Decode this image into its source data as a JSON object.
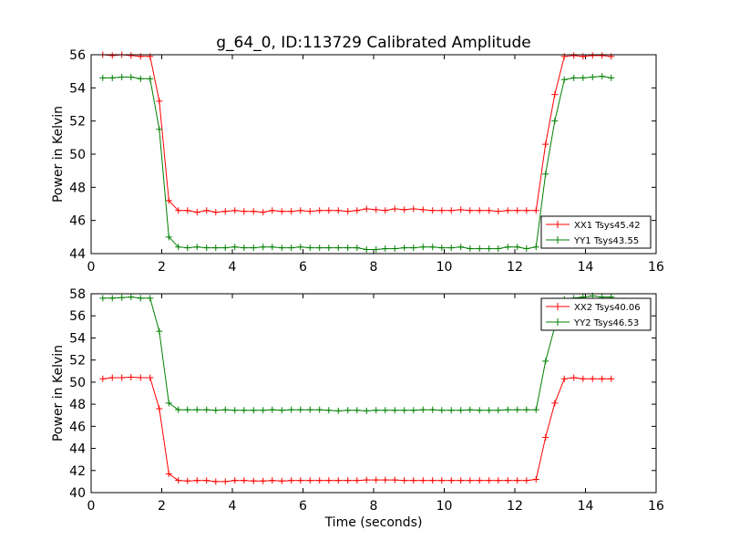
{
  "chart_data": [
    {
      "type": "line",
      "title": "g_64_0, ID:113729 Calibrated Amplitude",
      "xlabel": "",
      "ylabel": "Power in Kelvin",
      "xlim": [
        0,
        16
      ],
      "ylim": [
        44,
        56
      ],
      "xticks": [
        "0",
        "2",
        "4",
        "6",
        "8",
        "10",
        "12",
        "14",
        "16"
      ],
      "yticks": [
        "44",
        "46",
        "48",
        "50",
        "52",
        "54",
        "56"
      ],
      "legend_position": "lower-right",
      "grid": false,
      "x": [
        0.33,
        0.6,
        0.87,
        1.13,
        1.4,
        1.67,
        1.93,
        2.2,
        2.47,
        2.73,
        3.0,
        3.27,
        3.53,
        3.8,
        4.07,
        4.33,
        4.6,
        4.87,
        5.13,
        5.4,
        5.67,
        5.93,
        6.2,
        6.47,
        6.73,
        7.0,
        7.27,
        7.53,
        7.8,
        8.07,
        8.33,
        8.6,
        8.87,
        9.13,
        9.4,
        9.67,
        9.93,
        10.2,
        10.47,
        10.73,
        11.0,
        11.27,
        11.53,
        11.8,
        12.07,
        12.33,
        12.6,
        12.87,
        13.13,
        13.4,
        13.67,
        13.93,
        14.2,
        14.47,
        14.73
      ],
      "series": [
        {
          "name": "XX1 Tsys45.42",
          "color": "#ff0000",
          "values": [
            56.0,
            55.95,
            56.0,
            55.95,
            55.9,
            55.9,
            53.2,
            47.2,
            46.6,
            46.6,
            46.5,
            46.6,
            46.5,
            46.55,
            46.6,
            46.55,
            46.55,
            46.5,
            46.6,
            46.55,
            46.55,
            46.6,
            46.55,
            46.6,
            46.6,
            46.6,
            46.55,
            46.6,
            46.7,
            46.65,
            46.6,
            46.7,
            46.65,
            46.7,
            46.65,
            46.6,
            46.6,
            46.6,
            46.65,
            46.6,
            46.6,
            46.6,
            46.55,
            46.6,
            46.6,
            46.6,
            46.6,
            50.6,
            53.6,
            55.9,
            55.95,
            55.9,
            55.95,
            55.95,
            55.9
          ]
        },
        {
          "name": "YY1 Tsys43.55",
          "color": "#008000",
          "values": [
            54.6,
            54.6,
            54.65,
            54.65,
            54.55,
            54.55,
            51.5,
            45.0,
            44.4,
            44.35,
            44.4,
            44.35,
            44.35,
            44.35,
            44.4,
            44.35,
            44.35,
            44.4,
            44.4,
            44.35,
            44.35,
            44.4,
            44.35,
            44.35,
            44.35,
            44.35,
            44.35,
            44.35,
            44.25,
            44.25,
            44.3,
            44.3,
            44.35,
            44.35,
            44.4,
            44.4,
            44.35,
            44.35,
            44.4,
            44.3,
            44.3,
            44.3,
            44.3,
            44.4,
            44.4,
            44.3,
            44.4,
            48.8,
            52.0,
            54.5,
            54.6,
            54.6,
            54.65,
            54.7,
            54.6
          ]
        }
      ]
    },
    {
      "type": "line",
      "title": "",
      "xlabel": "Time (seconds)",
      "ylabel": "Power in Kelvin",
      "xlim": [
        0,
        16
      ],
      "ylim": [
        40,
        58
      ],
      "xticks": [
        "0",
        "2",
        "4",
        "6",
        "8",
        "10",
        "12",
        "14",
        "16"
      ],
      "yticks": [
        "40",
        "42",
        "44",
        "46",
        "48",
        "50",
        "52",
        "54",
        "56",
        "58"
      ],
      "legend_position": "upper-right",
      "grid": false,
      "x": [
        0.33,
        0.6,
        0.87,
        1.13,
        1.4,
        1.67,
        1.93,
        2.2,
        2.47,
        2.73,
        3.0,
        3.27,
        3.53,
        3.8,
        4.07,
        4.33,
        4.6,
        4.87,
        5.13,
        5.4,
        5.67,
        5.93,
        6.2,
        6.47,
        6.73,
        7.0,
        7.27,
        7.53,
        7.8,
        8.07,
        8.33,
        8.6,
        8.87,
        9.13,
        9.4,
        9.67,
        9.93,
        10.2,
        10.47,
        10.73,
        11.0,
        11.27,
        11.53,
        11.8,
        12.07,
        12.33,
        12.6,
        12.87,
        13.13,
        13.4,
        13.67,
        13.93,
        14.2,
        14.47,
        14.73
      ],
      "series": [
        {
          "name": "XX2 Tsys40.06",
          "color": "#ff0000",
          "values": [
            50.3,
            50.4,
            50.4,
            50.45,
            50.4,
            50.4,
            47.6,
            41.7,
            41.1,
            41.05,
            41.1,
            41.1,
            41.0,
            41.0,
            41.1,
            41.1,
            41.05,
            41.05,
            41.1,
            41.05,
            41.1,
            41.1,
            41.1,
            41.1,
            41.1,
            41.1,
            41.1,
            41.1,
            41.15,
            41.15,
            41.15,
            41.15,
            41.1,
            41.1,
            41.1,
            41.1,
            41.1,
            41.1,
            41.1,
            41.1,
            41.1,
            41.1,
            41.1,
            41.1,
            41.1,
            41.1,
            41.2,
            45.0,
            48.1,
            50.3,
            50.4,
            50.3,
            50.3,
            50.3,
            50.3
          ]
        },
        {
          "name": "YY2 Tsys46.53",
          "color": "#008000",
          "values": [
            57.6,
            57.6,
            57.65,
            57.7,
            57.6,
            57.6,
            54.6,
            48.1,
            47.5,
            47.5,
            47.5,
            47.5,
            47.45,
            47.5,
            47.45,
            47.45,
            47.45,
            47.45,
            47.5,
            47.45,
            47.5,
            47.5,
            47.5,
            47.5,
            47.45,
            47.4,
            47.45,
            47.45,
            47.4,
            47.45,
            47.45,
            47.45,
            47.45,
            47.45,
            47.5,
            47.5,
            47.45,
            47.45,
            47.45,
            47.5,
            47.45,
            47.45,
            47.45,
            47.5,
            47.5,
            47.5,
            47.5,
            51.9,
            55.0,
            57.5,
            57.6,
            57.7,
            57.8,
            57.7,
            57.7
          ]
        }
      ]
    }
  ]
}
